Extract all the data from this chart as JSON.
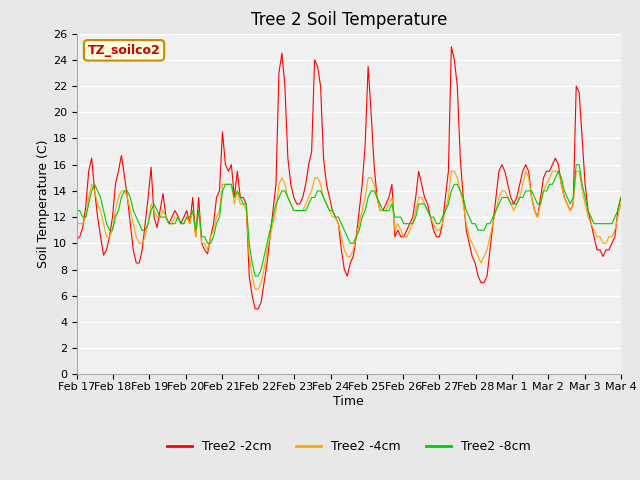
{
  "title": "Tree 2 Soil Temperature",
  "xlabel": "Time",
  "ylabel": "Soil Temperature (C)",
  "annotation": "TZ_soilco2",
  "ylim": [
    0,
    26
  ],
  "yticks": [
    0,
    2,
    4,
    6,
    8,
    10,
    12,
    14,
    16,
    18,
    20,
    22,
    24,
    26
  ],
  "x_labels": [
    "Feb 17",
    "Feb 18",
    "Feb 19",
    "Feb 20",
    "Feb 21",
    "Feb 22",
    "Feb 23",
    "Feb 24",
    "Feb 25",
    "Feb 26",
    "Feb 27",
    "Feb 28",
    "Mar 1",
    "Mar 2",
    "Mar 3",
    "Mar 4"
  ],
  "legend_labels": [
    "Tree2 -2cm",
    "Tree2 -4cm",
    "Tree2 -8cm"
  ],
  "line_colors": [
    "#ff0000",
    "#ffa500",
    "#00cc00"
  ],
  "background_color": "#e8e8e8",
  "plot_bg_color": "#f0f0f0",
  "grid_color": "#ffffff",
  "title_fontsize": 12,
  "label_fontsize": 9,
  "tick_fontsize": 8,
  "legend_fontsize": 9,
  "series_2cm": [
    10.3,
    10.5,
    11.2,
    12.8,
    15.5,
    16.5,
    14.0,
    12.0,
    10.5,
    9.1,
    9.5,
    10.5,
    12.0,
    14.5,
    15.5,
    16.7,
    15.2,
    13.5,
    11.5,
    9.5,
    8.5,
    8.5,
    9.5,
    11.5,
    13.5,
    15.8,
    12.0,
    11.2,
    12.5,
    13.8,
    12.0,
    11.5,
    12.0,
    12.5,
    12.1,
    11.5,
    12.0,
    12.5,
    11.5,
    13.5,
    10.5,
    13.5,
    10.0,
    9.5,
    9.2,
    10.5,
    11.5,
    13.5,
    14.0,
    18.5,
    16.0,
    15.5,
    16.0,
    13.5,
    15.5,
    13.5,
    13.5,
    13.0,
    7.5,
    6.0,
    5.0,
    5.0,
    5.5,
    7.0,
    8.5,
    10.5,
    12.5,
    14.5,
    23.0,
    24.5,
    22.0,
    16.5,
    14.5,
    13.5,
    13.0,
    13.0,
    13.5,
    14.5,
    16.0,
    17.0,
    24.0,
    23.5,
    22.0,
    16.5,
    14.5,
    13.5,
    12.5,
    12.0,
    11.5,
    9.5,
    8.0,
    7.5,
    8.5,
    9.0,
    10.5,
    12.5,
    14.5,
    17.5,
    23.5,
    20.0,
    16.0,
    13.5,
    12.5,
    12.5,
    13.0,
    13.5,
    14.5,
    10.5,
    11.0,
    10.5,
    10.5,
    11.0,
    11.5,
    12.0,
    13.5,
    15.5,
    14.5,
    13.5,
    13.0,
    12.0,
    11.0,
    10.5,
    10.5,
    11.5,
    13.5,
    15.5,
    25.0,
    24.0,
    22.0,
    16.5,
    13.5,
    11.0,
    10.0,
    9.0,
    8.5,
    7.5,
    7.0,
    7.0,
    7.5,
    9.5,
    11.5,
    13.5,
    15.5,
    16.0,
    15.5,
    14.5,
    13.5,
    13.0,
    13.5,
    14.5,
    15.5,
    16.0,
    15.5,
    13.5,
    12.5,
    12.0,
    13.5,
    15.0,
    15.5,
    15.5,
    16.0,
    16.5,
    16.0,
    14.5,
    13.5,
    13.0,
    12.5,
    13.0,
    22.0,
    21.5,
    18.0,
    14.5,
    12.5,
    11.5,
    10.5,
    9.5,
    9.5,
    9.0,
    9.5,
    9.5,
    10.0,
    10.5,
    12.5,
    13.5
  ],
  "series_4cm": [
    11.5,
    11.5,
    11.5,
    12.0,
    13.5,
    14.5,
    14.0,
    13.0,
    12.5,
    11.5,
    10.5,
    10.5,
    11.0,
    12.5,
    13.5,
    14.0,
    14.0,
    13.5,
    12.5,
    11.5,
    10.5,
    10.0,
    10.0,
    10.5,
    11.5,
    13.0,
    12.5,
    12.0,
    12.0,
    12.5,
    12.0,
    11.5,
    11.5,
    12.0,
    12.0,
    11.5,
    11.5,
    12.0,
    11.5,
    12.5,
    10.5,
    12.5,
    10.0,
    10.0,
    9.5,
    10.5,
    11.0,
    12.0,
    12.5,
    14.5,
    14.5,
    14.5,
    14.5,
    13.0,
    14.0,
    13.0,
    13.0,
    12.5,
    9.0,
    7.5,
    6.5,
    6.5,
    7.0,
    8.0,
    9.5,
    10.5,
    11.5,
    12.5,
    14.5,
    15.0,
    14.5,
    13.5,
    13.0,
    12.5,
    12.5,
    12.5,
    12.5,
    13.0,
    13.5,
    14.0,
    15.0,
    15.0,
    14.5,
    13.5,
    13.0,
    12.5,
    12.0,
    12.0,
    11.5,
    10.5,
    9.5,
    9.0,
    9.0,
    9.5,
    10.5,
    11.5,
    12.5,
    13.5,
    15.0,
    15.0,
    14.5,
    13.5,
    12.5,
    12.5,
    12.5,
    13.0,
    13.5,
    11.0,
    11.5,
    11.0,
    10.5,
    10.5,
    11.0,
    11.5,
    12.5,
    13.5,
    13.5,
    13.0,
    12.5,
    12.0,
    11.5,
    11.0,
    11.0,
    11.5,
    12.5,
    13.5,
    15.5,
    15.5,
    15.0,
    14.0,
    13.0,
    11.5,
    10.5,
    10.0,
    9.5,
    9.0,
    8.5,
    9.0,
    9.5,
    10.5,
    11.5,
    12.5,
    13.5,
    14.0,
    14.0,
    13.5,
    13.0,
    12.5,
    13.0,
    13.5,
    14.5,
    15.5,
    15.0,
    13.5,
    12.5,
    12.0,
    13.0,
    14.0,
    14.5,
    15.0,
    15.5,
    15.5,
    15.5,
    14.5,
    13.5,
    13.0,
    12.5,
    13.0,
    15.5,
    15.5,
    14.0,
    13.0,
    12.0,
    11.5,
    11.0,
    10.5,
    10.5,
    10.0,
    10.0,
    10.5,
    10.5,
    11.0,
    12.0,
    13.0
  ],
  "series_8cm": [
    12.5,
    12.5,
    12.0,
    12.0,
    13.0,
    14.0,
    14.5,
    14.0,
    13.5,
    12.5,
    11.5,
    11.0,
    11.0,
    12.0,
    12.5,
    13.5,
    14.0,
    14.0,
    13.5,
    12.5,
    12.0,
    11.5,
    11.0,
    11.0,
    11.5,
    12.5,
    13.0,
    12.5,
    12.0,
    12.0,
    12.0,
    11.5,
    11.5,
    11.5,
    12.0,
    11.5,
    11.5,
    12.0,
    12.0,
    12.5,
    11.0,
    12.5,
    10.5,
    10.5,
    10.0,
    10.0,
    10.5,
    11.5,
    12.0,
    14.0,
    14.5,
    14.5,
    14.5,
    13.5,
    14.0,
    13.5,
    13.0,
    13.0,
    10.0,
    8.5,
    7.5,
    7.5,
    8.0,
    9.0,
    10.0,
    11.0,
    12.0,
    13.0,
    13.5,
    14.0,
    14.0,
    13.5,
    13.0,
    12.5,
    12.5,
    12.5,
    12.5,
    12.5,
    13.0,
    13.5,
    13.5,
    14.0,
    14.0,
    13.5,
    13.0,
    12.5,
    12.5,
    12.0,
    12.0,
    11.5,
    11.0,
    10.5,
    10.0,
    10.0,
    10.5,
    11.0,
    12.0,
    12.5,
    13.5,
    14.0,
    14.0,
    13.5,
    13.0,
    12.5,
    12.5,
    12.5,
    13.0,
    12.0,
    12.0,
    12.0,
    11.5,
    11.5,
    11.5,
    11.5,
    12.0,
    13.0,
    13.0,
    13.0,
    12.5,
    12.0,
    12.0,
    11.5,
    11.5,
    12.0,
    12.5,
    13.0,
    14.0,
    14.5,
    14.5,
    14.0,
    13.5,
    12.5,
    12.0,
    11.5,
    11.5,
    11.0,
    11.0,
    11.0,
    11.5,
    11.5,
    12.0,
    12.5,
    13.0,
    13.5,
    13.5,
    13.5,
    13.0,
    13.0,
    13.0,
    13.5,
    13.5,
    14.0,
    14.0,
    14.0,
    13.5,
    13.0,
    13.0,
    14.0,
    14.0,
    14.5,
    14.5,
    15.0,
    15.5,
    15.0,
    14.0,
    13.5,
    13.0,
    13.5,
    16.0,
    16.0,
    14.5,
    13.5,
    12.5,
    12.0,
    11.5,
    11.5,
    11.5,
    11.5,
    11.5,
    11.5,
    11.5,
    12.0,
    12.5,
    13.5
  ]
}
